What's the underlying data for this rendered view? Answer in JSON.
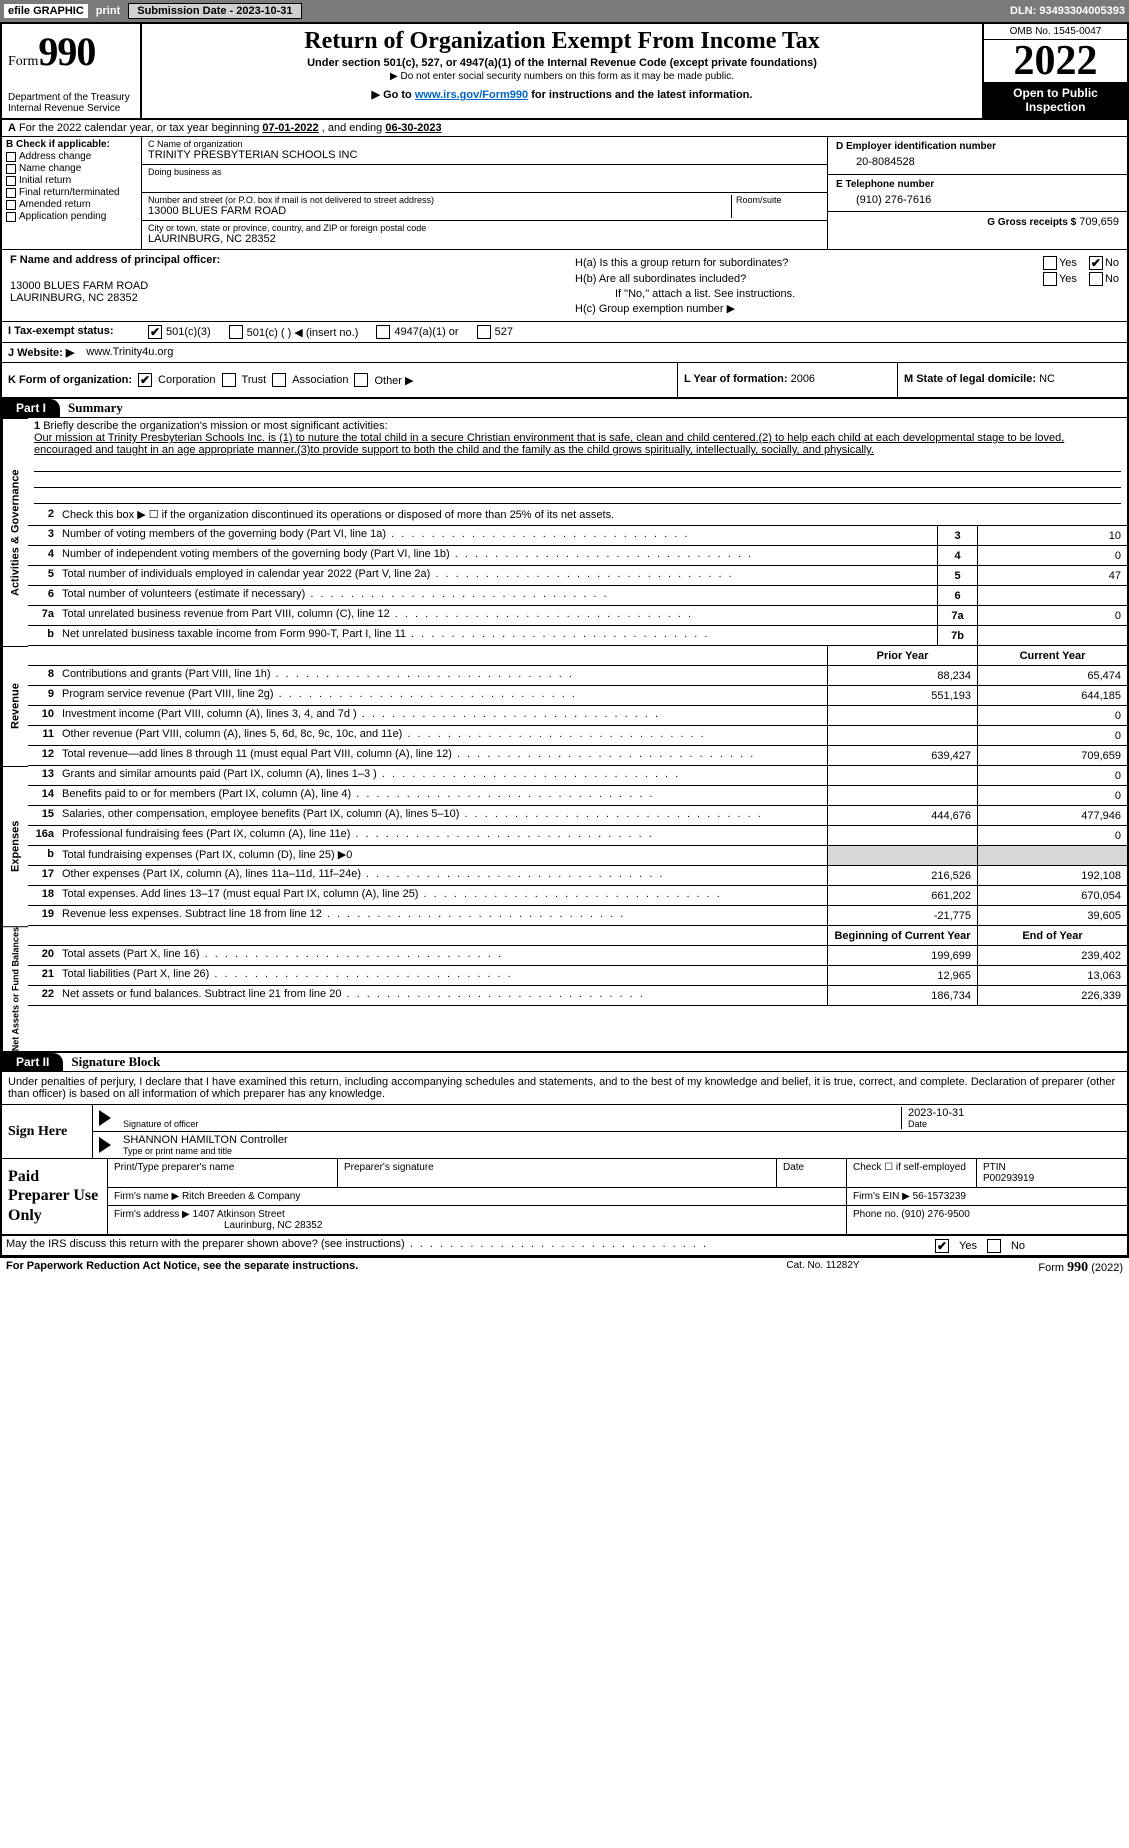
{
  "topbar": {
    "efile": "efile GRAPHIC",
    "print": "print",
    "submission_btn": "Submission Date - 2023-10-31",
    "dln": "DLN: 93493304005393"
  },
  "header": {
    "form_word": "Form",
    "form_num": "990",
    "dept": "Department of the Treasury Internal Revenue Service",
    "title": "Return of Organization Exempt From Income Tax",
    "subtitle": "Under section 501(c), 527, or 4947(a)(1) of the Internal Revenue Code (except private foundations)",
    "note1": "▶ Do not enter social security numbers on this form as it may be made public.",
    "note2_pre": "▶ Go to ",
    "note2_link": "www.irs.gov/Form990",
    "note2_post": " for instructions and the latest information.",
    "omb": "OMB No. 1545-0047",
    "year": "2022",
    "open": "Open to Public Inspection"
  },
  "rowA": {
    "prefix": "A",
    "text1": "For the 2022 calendar year, or tax year beginning ",
    "begin": "07-01-2022",
    "mid": " , and ending ",
    "end": "06-30-2023"
  },
  "colB": {
    "head": "B Check if applicable:",
    "items": [
      "Address change",
      "Name change",
      "Initial return",
      "Final return/terminated",
      "Amended return",
      "Application pending"
    ]
  },
  "colC": {
    "name_lbl": "C Name of organization",
    "name": "TRINITY PRESBYTERIAN SCHOOLS INC",
    "dba_lbl": "Doing business as",
    "dba": "",
    "addr_lbl": "Number and street (or P.O. box if mail is not delivered to street address)",
    "room_lbl": "Room/suite",
    "addr": "13000 BLUES FARM ROAD",
    "city_lbl": "City or town, state or province, country, and ZIP or foreign postal code",
    "city": "LAURINBURG, NC  28352"
  },
  "colD": {
    "ein_lbl": "D Employer identification number",
    "ein": "20-8084528",
    "tel_lbl": "E Telephone number",
    "tel": "(910) 276-7616",
    "gross_lbl": "G Gross receipts $",
    "gross": "709,659"
  },
  "rowF": {
    "f_lbl": "F Name and address of principal officer:",
    "f_addr1": "13000 BLUES FARM ROAD",
    "f_addr2": "LAURINBURG, NC  28352",
    "ha": "H(a)  Is this a group return for subordinates?",
    "hb": "H(b)  Are all subordinates included?",
    "hb_note": "If \"No,\" attach a list. See instructions.",
    "hc": "H(c)  Group exemption number ▶",
    "yes": "Yes",
    "no": "No"
  },
  "rowI": {
    "lbl": "I  Tax-exempt status:",
    "opt1": "501(c)(3)",
    "opt2": "501(c) (   ) ◀ (insert no.)",
    "opt3": "4947(a)(1) or",
    "opt4": "527"
  },
  "rowJ": {
    "lbl": "J  Website: ▶",
    "val": "www.Trinity4u.org"
  },
  "rowK": {
    "lbl": "K Form of organization:",
    "opts": [
      "Corporation",
      "Trust",
      "Association",
      "Other ▶"
    ]
  },
  "rowL": {
    "lbl": "L Year of formation:",
    "val": "2006"
  },
  "rowM": {
    "lbl": "M State of legal domicile:",
    "val": "NC"
  },
  "partI": {
    "tag": "Part I",
    "title": "Summary"
  },
  "mission": {
    "num": "1",
    "lbl": "Briefly describe the organization's mission or most significant activities:",
    "text": "Our mission at Trinity Presbyterian Schools Inc. is (1) to nuture the total child in a secure Christian environment that is safe, clean and child centered.(2) to help each child at each developmental stage to be loved, encouraged and taught in an age appropriate manner.(3)to provide support to both the child and the family as the child grows spiritually, intellectually, socially, and physically."
  },
  "line2": "Check this box ▶ ☐ if the organization discontinued its operations or disposed of more than 25% of its net assets.",
  "gov_lines": [
    {
      "n": "3",
      "t": "Number of voting members of the governing body (Part VI, line 1a)",
      "box": "3",
      "v": "10"
    },
    {
      "n": "4",
      "t": "Number of independent voting members of the governing body (Part VI, line 1b)",
      "box": "4",
      "v": "0"
    },
    {
      "n": "5",
      "t": "Total number of individuals employed in calendar year 2022 (Part V, line 2a)",
      "box": "5",
      "v": "47"
    },
    {
      "n": "6",
      "t": "Total number of volunteers (estimate if necessary)",
      "box": "6",
      "v": ""
    },
    {
      "n": "7a",
      "t": "Total unrelated business revenue from Part VIII, column (C), line 12",
      "box": "7a",
      "v": "0"
    },
    {
      "n": "b",
      "t": "Net unrelated business taxable income from Form 990-T, Part I, line 11",
      "box": "7b",
      "v": ""
    }
  ],
  "col_hdr": {
    "prior": "Prior Year",
    "current": "Current Year"
  },
  "rev_lines": [
    {
      "n": "8",
      "t": "Contributions and grants (Part VIII, line 1h)",
      "p": "88,234",
      "c": "65,474"
    },
    {
      "n": "9",
      "t": "Program service revenue (Part VIII, line 2g)",
      "p": "551,193",
      "c": "644,185"
    },
    {
      "n": "10",
      "t": "Investment income (Part VIII, column (A), lines 3, 4, and 7d )",
      "p": "",
      "c": "0"
    },
    {
      "n": "11",
      "t": "Other revenue (Part VIII, column (A), lines 5, 6d, 8c, 9c, 10c, and 11e)",
      "p": "",
      "c": "0"
    },
    {
      "n": "12",
      "t": "Total revenue—add lines 8 through 11 (must equal Part VIII, column (A), line 12)",
      "p": "639,427",
      "c": "709,659"
    }
  ],
  "exp_lines": [
    {
      "n": "13",
      "t": "Grants and similar amounts paid (Part IX, column (A), lines 1–3 )",
      "p": "",
      "c": "0"
    },
    {
      "n": "14",
      "t": "Benefits paid to or for members (Part IX, column (A), line 4)",
      "p": "",
      "c": "0"
    },
    {
      "n": "15",
      "t": "Salaries, other compensation, employee benefits (Part IX, column (A), lines 5–10)",
      "p": "444,676",
      "c": "477,946"
    },
    {
      "n": "16a",
      "t": "Professional fundraising fees (Part IX, column (A), line 11e)",
      "p": "",
      "c": "0"
    },
    {
      "n": "b",
      "t": "Total fundraising expenses (Part IX, column (D), line 25) ▶0",
      "p": null,
      "c": null
    },
    {
      "n": "17",
      "t": "Other expenses (Part IX, column (A), lines 11a–11d, 11f–24e)",
      "p": "216,526",
      "c": "192,108"
    },
    {
      "n": "18",
      "t": "Total expenses. Add lines 13–17 (must equal Part IX, column (A), line 25)",
      "p": "661,202",
      "c": "670,054"
    },
    {
      "n": "19",
      "t": "Revenue less expenses. Subtract line 18 from line 12",
      "p": "-21,775",
      "c": "39,605"
    }
  ],
  "net_hdr": {
    "begin": "Beginning of Current Year",
    "end": "End of Year"
  },
  "net_lines": [
    {
      "n": "20",
      "t": "Total assets (Part X, line 16)",
      "p": "199,699",
      "c": "239,402"
    },
    {
      "n": "21",
      "t": "Total liabilities (Part X, line 26)",
      "p": "12,965",
      "c": "13,063"
    },
    {
      "n": "22",
      "t": "Net assets or fund balances. Subtract line 21 from line 20",
      "p": "186,734",
      "c": "226,339"
    }
  ],
  "side_labels": {
    "gov": "Activities & Governance",
    "rev": "Revenue",
    "exp": "Expenses",
    "net": "Net Assets or Fund Balances"
  },
  "partII": {
    "tag": "Part II",
    "title": "Signature Block"
  },
  "sig": {
    "intro": "Under penalties of perjury, I declare that I have examined this return, including accompanying schedules and statements, and to the best of my knowledge and belief, it is true, correct, and complete. Declaration of preparer (other than officer) is based on all information of which preparer has any knowledge.",
    "sign_here": "Sign Here",
    "sig_officer": "Signature of officer",
    "date_lbl": "Date",
    "date": "2023-10-31",
    "name": "SHANNON HAMILTON Controller",
    "name_lbl": "Type or print name and title"
  },
  "prep": {
    "label": "Paid Preparer Use Only",
    "h1": "Print/Type preparer's name",
    "h2": "Preparer's signature",
    "h3": "Date",
    "h4_pre": "Check ☐ if self-employed",
    "h5": "PTIN",
    "ptin": "P00293919",
    "firm_lbl": "Firm's name    ▶",
    "firm": "Ritch Breeden & Company",
    "ein_lbl": "Firm's EIN ▶",
    "ein": "56-1573239",
    "addr_lbl": "Firm's address ▶",
    "addr1": "1407 Atkinson Street",
    "addr2": "Laurinburg, NC  28352",
    "phone_lbl": "Phone no.",
    "phone": "(910) 276-9500"
  },
  "discuss": {
    "q": "May the IRS discuss this return with the preparer shown above? (see instructions)",
    "yes": "Yes",
    "no": "No"
  },
  "footer": {
    "left": "For Paperwork Reduction Act Notice, see the separate instructions.",
    "mid": "Cat. No. 11282Y",
    "right_pre": "Form ",
    "right_b": "990",
    "right_post": " (2022)"
  }
}
